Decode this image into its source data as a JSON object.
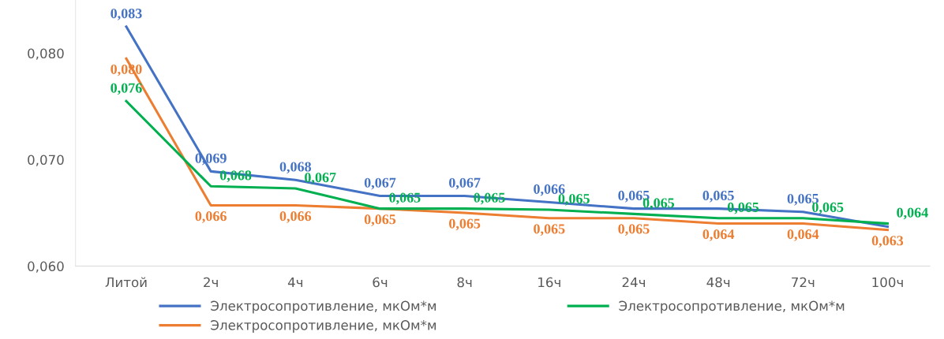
{
  "chart_data": {
    "type": "line",
    "categories": [
      "Литой",
      "2ч",
      "4ч",
      "6ч",
      "8ч",
      "16ч",
      "24ч",
      "48ч",
      "72ч",
      "100ч"
    ],
    "series": [
      {
        "name": "Электросопротивление, мкОм*м",
        "color": "#4472c4",
        "values": [
          0.0825,
          0.0689,
          0.0681,
          0.0666,
          0.0666,
          0.066,
          0.0654,
          0.0654,
          0.0651,
          0.0637
        ],
        "value_labels": [
          "0,083",
          "0,069",
          "0,068",
          "0,067",
          "0,067",
          "0,066",
          "0,065",
          "0,065",
          "0,065",
          null
        ]
      },
      {
        "name": "Электросопротивление, мкОм*м",
        "color": "#ed7d31",
        "values": [
          0.0795,
          0.0657,
          0.0657,
          0.0654,
          0.065,
          0.0645,
          0.0645,
          0.064,
          0.064,
          0.0634
        ],
        "value_labels": [
          "0,080",
          "0,066",
          "0,066",
          "0,065",
          "0,065",
          "0,065",
          "0,065",
          "0,064",
          "0,064",
          "0,063"
        ]
      },
      {
        "name": "Электросопротивление, мкОм*м",
        "color": "#00b050",
        "values": [
          0.0755,
          0.0675,
          0.0673,
          0.0654,
          0.0654,
          0.0653,
          0.0649,
          0.0645,
          0.0645,
          0.064
        ],
        "value_labels": [
          "0,076",
          "0,068",
          "0,067",
          "0,065",
          "0,065",
          "0,065",
          "0,065",
          "0,065",
          "0,065",
          "0,064"
        ]
      }
    ],
    "ylim": [
      0.06,
      0.085
    ],
    "yticks": [
      {
        "value": 0.06,
        "label": "0,060"
      },
      {
        "value": 0.07,
        "label": "0,070"
      },
      {
        "value": 0.08,
        "label": "0,080"
      }
    ],
    "grid": false,
    "legend": "bottom",
    "marker": "none",
    "line_style": "solid"
  }
}
